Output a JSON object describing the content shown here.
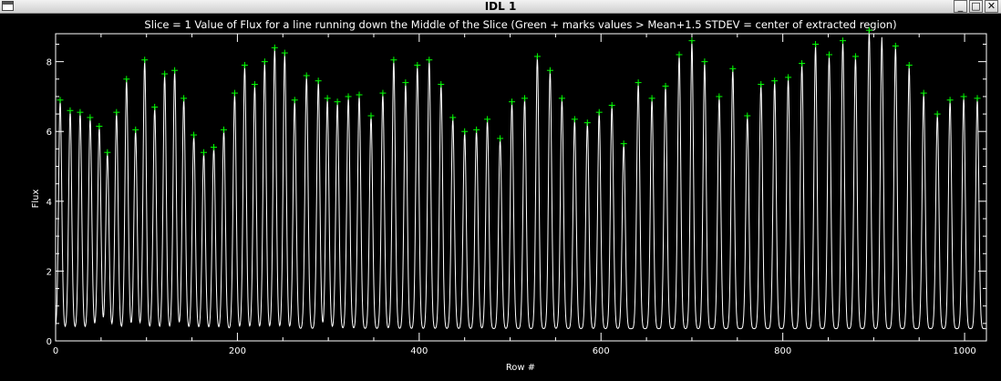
{
  "window": {
    "title": "IDL 1",
    "buttons": {
      "minimize": "_",
      "maximize": "□",
      "close": "✕"
    }
  },
  "colors": {
    "background": "#000000",
    "line": "#ffffff",
    "markers": "#00ff00"
  },
  "chart_data": {
    "type": "line",
    "title": "Slice = 1 Value of Flux for a line running down the Middle of the Slice (Green + marks values > Mean+1.5 STDEV = center of extracted region)",
    "xlabel": "Row #",
    "ylabel": "Flux",
    "xlim": [
      0,
      1024
    ],
    "ylim": [
      0,
      8.8
    ],
    "xticks": [
      0,
      200,
      400,
      600,
      800,
      1000
    ],
    "yticks": [
      0,
      2,
      4,
      6,
      8
    ],
    "xtick_labels": [
      "0",
      "200",
      "400",
      "600",
      "800",
      "1000"
    ],
    "ytick_labels": [
      "0",
      "2",
      "4",
      "6",
      "8"
    ],
    "baseline": 0.35,
    "grid": false,
    "legend": "none",
    "series": [
      {
        "style": "white-line",
        "x": [
          5,
          16,
          27,
          38,
          48,
          57,
          67,
          78,
          88,
          98,
          109,
          120,
          131,
          141,
          152,
          163,
          174,
          185,
          197,
          208,
          219,
          230,
          241,
          252,
          263,
          276,
          289,
          299,
          310,
          322,
          334,
          347,
          360,
          372,
          385,
          398,
          411,
          424,
          437,
          450,
          463,
          475,
          489,
          502,
          516,
          530,
          544,
          557,
          571,
          585,
          598,
          612,
          625,
          641,
          656,
          671,
          686,
          700,
          714,
          730,
          745,
          761,
          776,
          791,
          806,
          821,
          836,
          851,
          866,
          880,
          895,
          909,
          924,
          939,
          955,
          970,
          984,
          999,
          1014
        ],
        "values": [
          6.9,
          6.6,
          6.55,
          6.4,
          6.15,
          5.4,
          6.55,
          7.5,
          6.05,
          8.05,
          6.7,
          7.65,
          7.75,
          6.95,
          5.9,
          5.4,
          5.55,
          6.05,
          7.1,
          7.9,
          7.35,
          8.0,
          8.4,
          8.25,
          6.9,
          7.6,
          7.45,
          6.95,
          6.85,
          7.0,
          7.05,
          6.45,
          7.1,
          8.05,
          7.4,
          7.9,
          8.05,
          7.35,
          6.4,
          6.0,
          6.05,
          6.35,
          5.8,
          6.85,
          6.95,
          8.15,
          7.75,
          6.95,
          6.35,
          6.25,
          6.55,
          6.75,
          5.65,
          7.4,
          6.95,
          7.3,
          8.2,
          8.6,
          8.0,
          7.0,
          7.8,
          6.45,
          7.35,
          7.45,
          7.55,
          7.95,
          8.5,
          8.2,
          8.6,
          8.15,
          8.9,
          8.7,
          8.45,
          7.9,
          7.1,
          6.5,
          6.9,
          7.0,
          6.95
        ]
      },
      {
        "style": "green-plus",
        "x": [
          5,
          16,
          27,
          38,
          48,
          57,
          67,
          78,
          88,
          98,
          109,
          120,
          131,
          141,
          152,
          163,
          174,
          185,
          197,
          208,
          219,
          230,
          241,
          252,
          263,
          276,
          289,
          299,
          310,
          322,
          334,
          347,
          360,
          372,
          385,
          398,
          411,
          424,
          437,
          450,
          463,
          475,
          489,
          502,
          516,
          530,
          544,
          557,
          571,
          585,
          598,
          612,
          625,
          641,
          656,
          671,
          686,
          700,
          714,
          730,
          745,
          761,
          776,
          791,
          806,
          821,
          836,
          851,
          866,
          880,
          895,
          924,
          939,
          955,
          970,
          984,
          999,
          1014
        ],
        "values": [
          6.9,
          6.6,
          6.55,
          6.4,
          6.15,
          5.4,
          6.55,
          7.5,
          6.05,
          8.05,
          6.7,
          7.65,
          7.75,
          6.95,
          5.9,
          5.4,
          5.55,
          6.05,
          7.1,
          7.9,
          7.35,
          8.0,
          8.4,
          8.25,
          6.9,
          7.6,
          7.45,
          6.95,
          6.85,
          7.0,
          7.05,
          6.45,
          7.1,
          8.05,
          7.4,
          7.9,
          8.05,
          7.35,
          6.4,
          6.0,
          6.05,
          6.35,
          5.8,
          6.85,
          6.95,
          8.15,
          7.75,
          6.95,
          6.35,
          6.25,
          6.55,
          6.75,
          5.65,
          7.4,
          6.95,
          7.3,
          8.2,
          8.6,
          8.0,
          7.0,
          7.8,
          6.45,
          7.35,
          7.45,
          7.55,
          7.95,
          8.5,
          8.2,
          8.6,
          8.15,
          8.9,
          8.45,
          7.9,
          7.1,
          6.5,
          6.9,
          7.0,
          6.95
        ]
      }
    ]
  }
}
